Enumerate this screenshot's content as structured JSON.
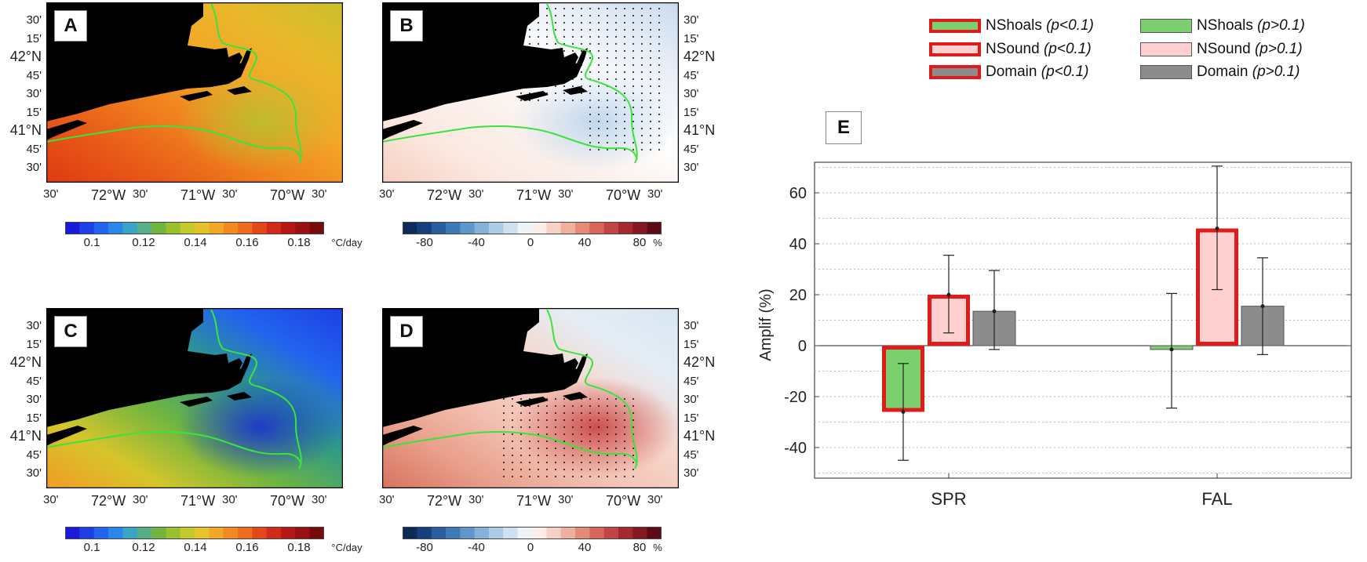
{
  "panels": [
    {
      "label": "A",
      "lat_left": true
    },
    {
      "label": "B",
      "lat_left": false
    },
    {
      "label": "C",
      "lat_left": true
    },
    {
      "label": "D",
      "lat_left": false
    }
  ],
  "lat_labels": [
    "30'",
    "15'",
    "42°N",
    "45'",
    "30'",
    "15'",
    "41°N",
    "45'",
    "30'"
  ],
  "lon_labels": [
    "30'",
    "72°W",
    "30'",
    "71°W",
    "30'",
    "70°W",
    "30'"
  ],
  "colorbar_temp": {
    "ticks": [
      "0.1",
      "0.12",
      "0.14",
      "0.16",
      "0.18"
    ],
    "unit": "°C/day",
    "colors": [
      "#1a1adb",
      "#1d3fe6",
      "#2264ee",
      "#2a86e8",
      "#3aa3c8",
      "#55b08a",
      "#6fb540",
      "#9ac02e",
      "#c6c92b",
      "#e6c22a",
      "#f2a726",
      "#f28a22",
      "#ee6c1e",
      "#e4481a",
      "#d22a18",
      "#b71714",
      "#981010",
      "#7a0a0a"
    ]
  },
  "colorbar_pct": {
    "ticks": [
      "-80",
      "-40",
      "0",
      "40",
      "80"
    ],
    "unit": "%",
    "colors": [
      "#0b2c5a",
      "#173f7e",
      "#2a5da0",
      "#3d78b8",
      "#5f97cb",
      "#86b2d9",
      "#abcbe6",
      "#cfe0ef",
      "#eef3f8",
      "#fbeee8",
      "#f6d2c6",
      "#efb09e",
      "#e48b78",
      "#d6675a",
      "#c24444",
      "#a42a30",
      "#841822",
      "#5e0b18"
    ]
  },
  "legend": [
    {
      "name": "NShoals",
      "p": "(p<0.1)",
      "kind": "sig",
      "color": "#7ccf6e"
    },
    {
      "name": "NShoals",
      "p": "(p>0.1)",
      "kind": "nsig",
      "color": "#7ccf6e"
    },
    {
      "name": "NSound",
      "p": "(p<0.1)",
      "kind": "sig",
      "color": "#ffd0d0"
    },
    {
      "name": "NSound",
      "p": "(p>0.1)",
      "kind": "nsig",
      "color": "#ffd0d0"
    },
    {
      "name": "Domain",
      "p": "(p<0.1)",
      "kind": "sig",
      "color": "#8c8c8c"
    },
    {
      "name": "Domain",
      "p": "(p>0.1)",
      "kind": "nsig",
      "color": "#8c8c8c"
    }
  ],
  "chart_data": {
    "type": "bar",
    "panel_label": "E",
    "categories": [
      "SPR",
      "FAL"
    ],
    "ylabel": "Amplif (%)",
    "xlabel": "",
    "ylim": [
      -52,
      72
    ],
    "yticks": [
      -40,
      -20,
      0,
      20,
      40,
      60
    ],
    "grid": true,
    "series": [
      {
        "name": "NShoals",
        "color": "#7ccf6e",
        "values": [
          -26,
          -1.5
        ],
        "significant": [
          true,
          false
        ],
        "err_low": [
          -45,
          -24.5
        ],
        "err_high": [
          -7,
          20.5
        ]
      },
      {
        "name": "NSound",
        "color": "#ffd0d0",
        "values": [
          20,
          46
        ],
        "significant": [
          true,
          true
        ],
        "err_low": [
          5,
          22
        ],
        "err_high": [
          35.5,
          70.5
        ]
      },
      {
        "name": "Domain",
        "color": "#8c8c8c",
        "values": [
          13.5,
          15.5
        ],
        "significant": [
          false,
          false
        ],
        "err_low": [
          -1.5,
          -3.5
        ],
        "err_high": [
          29.5,
          34.5
        ]
      }
    ]
  }
}
